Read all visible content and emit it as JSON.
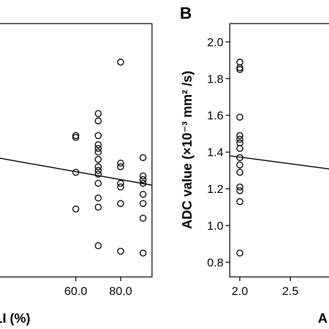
{
  "chart_data": [
    {
      "type": "scatter",
      "panel_label": "",
      "title": "",
      "xlabel": "LI (%)",
      "ylabel": "",
      "xlim": [
        20,
        94
      ],
      "ylim": [
        0.72,
        2.1
      ],
      "x_ticks": [
        60,
        80
      ],
      "x_tick_labels": [
        "60.0",
        "80.0"
      ],
      "grid": false,
      "legend": "none",
      "points": [
        {
          "x": 60,
          "y": 1.49
        },
        {
          "x": 60,
          "y": 1.48
        },
        {
          "x": 60,
          "y": 1.29
        },
        {
          "x": 60,
          "y": 1.09
        },
        {
          "x": 70,
          "y": 1.61
        },
        {
          "x": 70,
          "y": 1.57
        },
        {
          "x": 70,
          "y": 1.49
        },
        {
          "x": 70,
          "y": 1.44
        },
        {
          "x": 70,
          "y": 1.42
        },
        {
          "x": 70,
          "y": 1.4
        },
        {
          "x": 70,
          "y": 1.36
        },
        {
          "x": 70,
          "y": 1.32
        },
        {
          "x": 70,
          "y": 1.3
        },
        {
          "x": 70,
          "y": 1.28
        },
        {
          "x": 70,
          "y": 1.23
        },
        {
          "x": 70,
          "y": 1.15
        },
        {
          "x": 70,
          "y": 1.1
        },
        {
          "x": 70,
          "y": 0.89
        },
        {
          "x": 80,
          "y": 1.89
        },
        {
          "x": 80,
          "y": 1.34
        },
        {
          "x": 80,
          "y": 1.32
        },
        {
          "x": 80,
          "y": 1.23
        },
        {
          "x": 80,
          "y": 1.21
        },
        {
          "x": 80,
          "y": 1.12
        },
        {
          "x": 80,
          "y": 0.86
        },
        {
          "x": 90,
          "y": 1.37
        },
        {
          "x": 90,
          "y": 1.27
        },
        {
          "x": 90,
          "y": 1.25
        },
        {
          "x": 90,
          "y": 1.23
        },
        {
          "x": 90,
          "y": 1.17
        },
        {
          "x": 90,
          "y": 1.12
        },
        {
          "x": 90,
          "y": 1.04
        },
        {
          "x": 90,
          "y": 0.85
        }
      ],
      "fit_line": {
        "x": [
          20,
          94
        ],
        "y": [
          1.38,
          1.22
        ]
      }
    },
    {
      "type": "scatter",
      "panel_label": "B",
      "title": "",
      "xlabel": "A",
      "ylabel": "ADC value (×10⁻³ mm² /s)",
      "xlim": [
        1.9,
        3.0
      ],
      "ylim": [
        0.72,
        2.1
      ],
      "x_ticks": [
        2.0,
        2.5
      ],
      "x_tick_labels": [
        "2.0",
        "2.5"
      ],
      "y_ticks": [
        0.8,
        1.0,
        1.2,
        1.4,
        1.6,
        1.8,
        2.0
      ],
      "y_tick_labels": [
        "0.8",
        "1.0",
        "1.2",
        "1.4",
        "1.6",
        "1.8",
        "2.0"
      ],
      "grid": false,
      "legend": "none",
      "points": [
        {
          "x": 2.0,
          "y": 1.89
        },
        {
          "x": 2.0,
          "y": 1.86
        },
        {
          "x": 2.0,
          "y": 1.85
        },
        {
          "x": 2.0,
          "y": 1.59
        },
        {
          "x": 2.0,
          "y": 1.49
        },
        {
          "x": 2.0,
          "y": 1.47
        },
        {
          "x": 2.0,
          "y": 1.45
        },
        {
          "x": 2.0,
          "y": 1.42
        },
        {
          "x": 2.0,
          "y": 1.37
        },
        {
          "x": 2.0,
          "y": 1.33
        },
        {
          "x": 2.0,
          "y": 1.29
        },
        {
          "x": 2.0,
          "y": 1.21
        },
        {
          "x": 2.0,
          "y": 1.19
        },
        {
          "x": 2.0,
          "y": 1.13
        },
        {
          "x": 2.0,
          "y": 0.85
        }
      ],
      "fit_line": {
        "x": [
          1.9,
          3.0
        ],
        "y": [
          1.38,
          1.3
        ]
      }
    }
  ]
}
